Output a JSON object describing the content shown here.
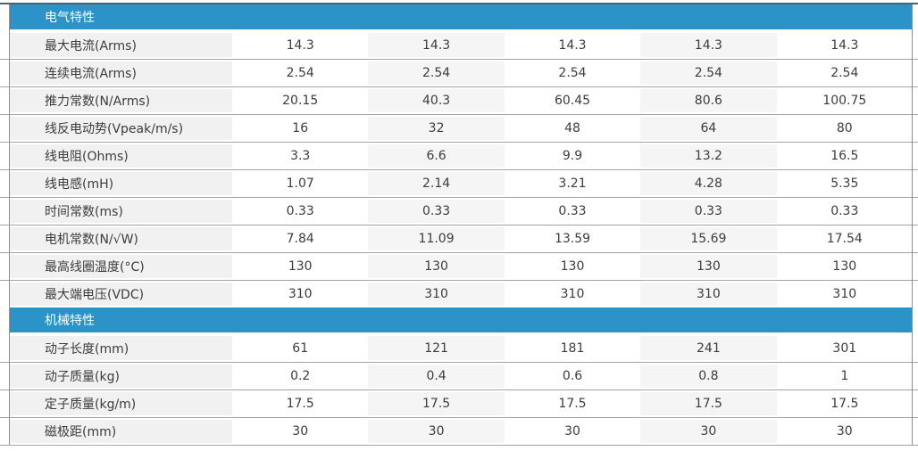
{
  "table": {
    "data_columns": 5,
    "sections": [
      {
        "title": "电气特性",
        "rows": [
          {
            "label": "最大电流(Arms)",
            "values": [
              "14.3",
              "14.3",
              "14.3",
              "14.3",
              "14.3"
            ]
          },
          {
            "label": "连续电流(Arms)",
            "values": [
              "2.54",
              "2.54",
              "2.54",
              "2.54",
              "2.54"
            ]
          },
          {
            "label": "推力常数(N/Arms)",
            "values": [
              "20.15",
              "40.3",
              "60.45",
              "80.6",
              "100.75"
            ]
          },
          {
            "label": "线反电动势(Vpeak/m/s)",
            "values": [
              "16",
              "32",
              "48",
              "64",
              "80"
            ]
          },
          {
            "label": "线电阻(Ohms)",
            "values": [
              "3.3",
              "6.6",
              "9.9",
              "13.2",
              "16.5"
            ]
          },
          {
            "label": "线电感(mH)",
            "values": [
              "1.07",
              "2.14",
              "3.21",
              "4.28",
              "5.35"
            ]
          },
          {
            "label": "时间常数(ms)",
            "values": [
              "0.33",
              "0.33",
              "0.33",
              "0.33",
              "0.33"
            ]
          },
          {
            "label": "电机常数(N/√W)",
            "values": [
              "7.84",
              "11.09",
              "13.59",
              "15.69",
              "17.54"
            ]
          },
          {
            "label": "最高线圈温度(°C)",
            "values": [
              "130",
              "130",
              "130",
              "130",
              "130"
            ]
          },
          {
            "label": "最大端电压(VDC)",
            "values": [
              "310",
              "310",
              "310",
              "310",
              "310"
            ]
          }
        ]
      },
      {
        "title": "机械特性",
        "rows": [
          {
            "label": "动子长度(mm)",
            "values": [
              "61",
              "121",
              "181",
              "241",
              "301"
            ]
          },
          {
            "label": "动子质量(kg)",
            "values": [
              "0.2",
              "0.4",
              "0.6",
              "0.8",
              "1"
            ]
          },
          {
            "label": "定子质量(kg/m)",
            "values": [
              "17.5",
              "17.5",
              "17.5",
              "17.5",
              "17.5"
            ]
          },
          {
            "label": "磁极距(mm)",
            "values": [
              "30",
              "30",
              "30",
              "30",
              "30"
            ]
          }
        ]
      }
    ],
    "colors": {
      "section_header_bg": "#2b93c8",
      "section_header_text": "#ffffff",
      "label_column_bg": "#f1f1f1",
      "alt_column_bg": "#f5f5f5",
      "row_divider": "#a3a3a3",
      "top_border": "#52606b",
      "body_text": "#3c3c3c"
    }
  }
}
